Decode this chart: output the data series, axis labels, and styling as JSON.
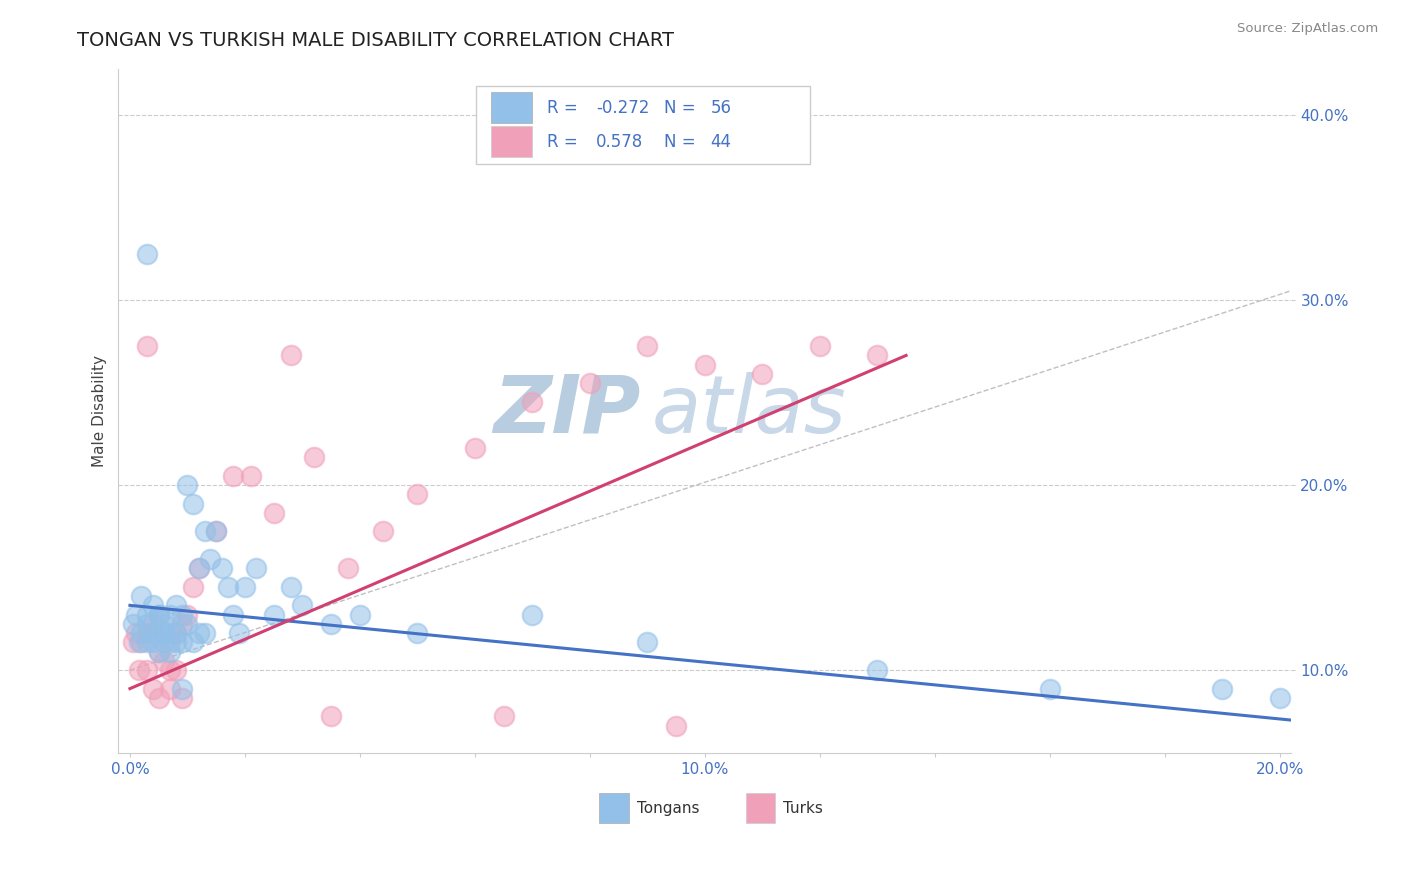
{
  "title": "TONGAN VS TURKISH MALE DISABILITY CORRELATION CHART",
  "source_text": "Source: ZipAtlas.com",
  "ylabel": "Male Disability",
  "xlim": [
    -0.002,
    0.202
  ],
  "ylim": [
    0.055,
    0.425
  ],
  "xticks": [
    0.0,
    0.02,
    0.04,
    0.06,
    0.08,
    0.1,
    0.12,
    0.14,
    0.16,
    0.18,
    0.2
  ],
  "xticklabels": [
    "0.0%",
    "",
    "",
    "",
    "",
    "10.0%",
    "",
    "",
    "",
    "",
    "20.0%"
  ],
  "yticks": [
    0.1,
    0.2,
    0.3,
    0.4
  ],
  "yticklabels": [
    "10.0%",
    "20.0%",
    "30.0%",
    "40.0%"
  ],
  "tongan_color": "#92C0E8",
  "turk_color": "#F0A0B8",
  "tongan_line_color": "#4472C4",
  "turk_line_color": "#D04070",
  "ref_line_color": "#C0C0C0",
  "legend_R_tongan": "-0.272",
  "legend_N_tongan": "56",
  "legend_R_turk": "0.578",
  "legend_N_turk": "44",
  "watermark": "ZIPAtlas",
  "watermark_color": "#C8D8EA",
  "grid_color": "#CCCCCC",
  "title_color": "#222222",
  "tick_color": "#4472C4",
  "legend_text_color": "#4472C4",
  "tongan_scatter_x": [
    0.0005,
    0.001,
    0.0015,
    0.002,
    0.002,
    0.003,
    0.003,
    0.003,
    0.004,
    0.004,
    0.004,
    0.005,
    0.005,
    0.005,
    0.006,
    0.006,
    0.006,
    0.007,
    0.007,
    0.008,
    0.008,
    0.008,
    0.009,
    0.009,
    0.01,
    0.01,
    0.011,
    0.012,
    0.012,
    0.013,
    0.014,
    0.015,
    0.016,
    0.017,
    0.018,
    0.019,
    0.02,
    0.022,
    0.025,
    0.028,
    0.03,
    0.035,
    0.04,
    0.05,
    0.07,
    0.09,
    0.13,
    0.16,
    0.19,
    0.2,
    0.003,
    0.005,
    0.007,
    0.009,
    0.011,
    0.013
  ],
  "tongan_scatter_y": [
    0.125,
    0.13,
    0.115,
    0.12,
    0.14,
    0.125,
    0.115,
    0.13,
    0.12,
    0.135,
    0.115,
    0.13,
    0.12,
    0.11,
    0.125,
    0.12,
    0.115,
    0.13,
    0.11,
    0.135,
    0.12,
    0.115,
    0.13,
    0.115,
    0.2,
    0.125,
    0.19,
    0.155,
    0.12,
    0.175,
    0.16,
    0.175,
    0.155,
    0.145,
    0.13,
    0.12,
    0.145,
    0.155,
    0.13,
    0.145,
    0.135,
    0.125,
    0.13,
    0.12,
    0.13,
    0.115,
    0.1,
    0.09,
    0.09,
    0.085,
    0.325,
    0.13,
    0.12,
    0.09,
    0.115,
    0.12
  ],
  "turk_scatter_x": [
    0.0005,
    0.001,
    0.0015,
    0.002,
    0.003,
    0.003,
    0.004,
    0.004,
    0.005,
    0.005,
    0.006,
    0.006,
    0.007,
    0.007,
    0.008,
    0.008,
    0.009,
    0.01,
    0.011,
    0.012,
    0.015,
    0.018,
    0.021,
    0.025,
    0.028,
    0.032,
    0.038,
    0.044,
    0.05,
    0.06,
    0.07,
    0.08,
    0.09,
    0.1,
    0.11,
    0.12,
    0.13,
    0.003,
    0.005,
    0.007,
    0.009,
    0.035,
    0.065,
    0.095
  ],
  "turk_scatter_y": [
    0.115,
    0.12,
    0.1,
    0.115,
    0.12,
    0.1,
    0.125,
    0.09,
    0.11,
    0.13,
    0.105,
    0.12,
    0.115,
    0.1,
    0.12,
    0.1,
    0.125,
    0.13,
    0.145,
    0.155,
    0.175,
    0.205,
    0.205,
    0.185,
    0.27,
    0.215,
    0.155,
    0.175,
    0.195,
    0.22,
    0.245,
    0.255,
    0.275,
    0.265,
    0.26,
    0.275,
    0.27,
    0.275,
    0.085,
    0.09,
    0.085,
    0.075,
    0.075,
    0.07
  ],
  "tongan_trendline_x": [
    0.0,
    0.202
  ],
  "tongan_trendline_y": [
    0.135,
    0.073
  ],
  "turk_trendline_x": [
    0.0,
    0.135
  ],
  "turk_trendline_y": [
    0.09,
    0.27
  ],
  "ref_line_x": [
    0.0,
    0.202
  ],
  "ref_line_y": [
    0.1,
    0.305
  ]
}
